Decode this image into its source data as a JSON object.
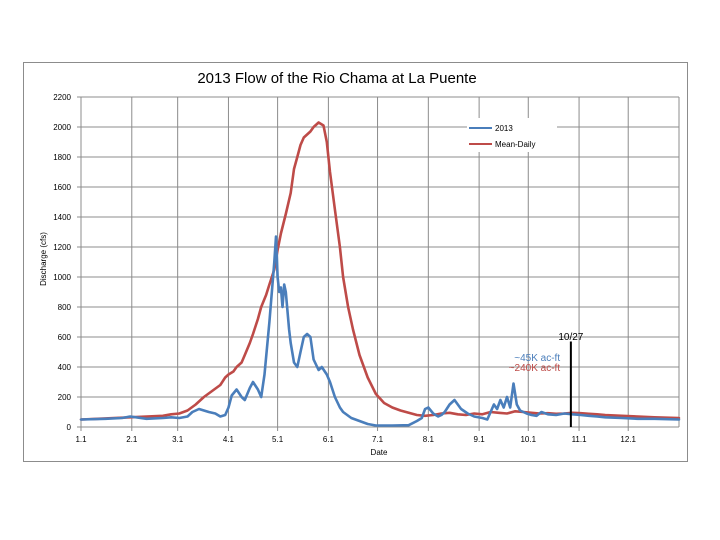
{
  "chart_data": {
    "type": "line",
    "title": "2013 Flow of the Rio Chama at La Puente",
    "xlabel": "Date",
    "ylabel": "Discharge (cfs)",
    "ylim": [
      0,
      2200
    ],
    "yticks": [
      0,
      200,
      400,
      600,
      800,
      1000,
      1200,
      1400,
      1600,
      1800,
      2000,
      2200
    ],
    "xlim": [
      0,
      365
    ],
    "xticks": [
      {
        "label": "1.1",
        "day": 0
      },
      {
        "label": "2.1",
        "day": 31
      },
      {
        "label": "3.1",
        "day": 59
      },
      {
        "label": "4.1",
        "day": 90
      },
      {
        "label": "5.1",
        "day": 120
      },
      {
        "label": "6.1",
        "day": 151
      },
      {
        "label": "7.1",
        "day": 181
      },
      {
        "label": "8.1",
        "day": 212
      },
      {
        "label": "9.1",
        "day": 243
      },
      {
        "label": "10.1",
        "day": 273
      },
      {
        "label": "11.1",
        "day": 304
      },
      {
        "label": "12.1",
        "day": 334
      }
    ],
    "grid": true,
    "legend_position": "top-right",
    "series": [
      {
        "name": "2013",
        "color": "#4a7ebb",
        "x": [
          0,
          15,
          25,
          30,
          40,
          50,
          55,
          60,
          65,
          68,
          72,
          78,
          82,
          85,
          88,
          90,
          92,
          95,
          98,
          100,
          103,
          105,
          108,
          110,
          112,
          115,
          118,
          119,
          120,
          121,
          122,
          123,
          124,
          125,
          127,
          128,
          130,
          132,
          134,
          136,
          138,
          140,
          142,
          145,
          147,
          150,
          152,
          155,
          158,
          160,
          165,
          170,
          175,
          180,
          190,
          200,
          205,
          208,
          210,
          212,
          215,
          218,
          220,
          222,
          225,
          228,
          232,
          236,
          240,
          245,
          248,
          250,
          252,
          254,
          256,
          258,
          260,
          262,
          264,
          266,
          268,
          270,
          272,
          275,
          278,
          281,
          285,
          290,
          295,
          300,
          305,
          310,
          315,
          320,
          330,
          340,
          350,
          365
        ],
        "y": [
          50,
          55,
          60,
          70,
          55,
          60,
          65,
          60,
          70,
          100,
          120,
          100,
          90,
          70,
          80,
          130,
          210,
          250,
          200,
          180,
          260,
          300,
          250,
          200,
          350,
          700,
          1100,
          1270,
          1000,
          900,
          930,
          800,
          950,
          900,
          650,
          560,
          430,
          400,
          500,
          600,
          620,
          600,
          450,
          380,
          400,
          350,
          300,
          200,
          130,
          100,
          60,
          40,
          20,
          10,
          10,
          12,
          40,
          60,
          120,
          130,
          90,
          70,
          80,
          100,
          150,
          180,
          120,
          90,
          70,
          60,
          50,
          100,
          150,
          120,
          180,
          130,
          200,
          130,
          290,
          150,
          110,
          100,
          90,
          80,
          75,
          100,
          85,
          80,
          90,
          85,
          80,
          75,
          70,
          65,
          60,
          55,
          55,
          50
        ]
      },
      {
        "name": "Mean-Daily",
        "color": "#be4b48",
        "x": [
          0,
          10,
          20,
          30,
          40,
          50,
          55,
          60,
          65,
          70,
          75,
          80,
          85,
          88,
          90,
          93,
          95,
          98,
          100,
          103,
          105,
          108,
          110,
          113,
          115,
          118,
          120,
          122,
          125,
          128,
          130,
          132,
          134,
          136,
          138,
          140,
          142,
          145,
          148,
          150,
          152,
          155,
          158,
          160,
          163,
          166,
          170,
          175,
          180,
          185,
          190,
          195,
          200,
          205,
          210,
          215,
          220,
          225,
          230,
          235,
          240,
          245,
          250,
          255,
          260,
          265,
          270,
          275,
          280,
          285,
          290,
          295,
          300,
          305,
          310,
          315,
          320,
          330,
          340,
          350,
          365
        ],
        "y": [
          50,
          55,
          60,
          65,
          70,
          75,
          85,
          90,
          110,
          150,
          200,
          240,
          280,
          330,
          350,
          370,
          400,
          430,
          480,
          560,
          620,
          720,
          800,
          880,
          950,
          1050,
          1180,
          1290,
          1420,
          1560,
          1720,
          1800,
          1880,
          1930,
          1950,
          1970,
          2000,
          2030,
          2010,
          1900,
          1700,
          1450,
          1200,
          1000,
          800,
          650,
          480,
          330,
          220,
          160,
          130,
          110,
          95,
          80,
          75,
          80,
          90,
          95,
          85,
          80,
          90,
          85,
          100,
          95,
          90,
          105,
          100,
          95,
          90,
          92,
          88,
          90,
          95,
          92,
          88,
          85,
          80,
          75,
          70,
          65,
          60
        ]
      }
    ],
    "annotations": [
      {
        "text": "10/27",
        "day": 299,
        "y": 580,
        "color": "#000000"
      },
      {
        "text": "~45K ac-ft",
        "day": 290,
        "y": 440,
        "color": "#4a7ebb"
      },
      {
        "text": "~240K ac-ft",
        "day": 290,
        "y": 375,
        "color": "#be4b48"
      }
    ],
    "marker": {
      "day": 299,
      "from": 0,
      "to": 570
    }
  }
}
